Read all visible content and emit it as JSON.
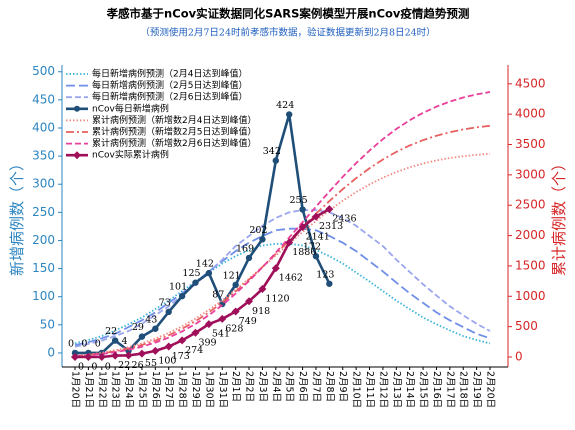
{
  "chart_data": {
    "type": "line",
    "title": "孝感市基于nCov实证数据同化SARS案例模型开展nCov疫情趋势预测",
    "subtitle": "（预测使用2月7日24时前孝感市数据，验证数据更新到2月8日24时）",
    "y_label": "新增病例数（个）",
    "y2_label": "累计病例数（个）",
    "categories": [
      "1月20日",
      "1月21日",
      "1月22日",
      "1月23日",
      "1月24日",
      "1月25日",
      "1月26日",
      "1月27日",
      "1月28日",
      "1月29日",
      "1月30日",
      "1月31日",
      "2月1日",
      "2月2日",
      "2月3日",
      "2月4日",
      "2月5日",
      "2月6日",
      "2月7日",
      "2月8日",
      "2月9日",
      "2月10日",
      "2月11日",
      "2月12日",
      "2月13日",
      "2月14日",
      "2月15日",
      "2月16日",
      "2月17日",
      "2月18日",
      "2月19日",
      "2月20日"
    ],
    "ylim": [
      -25,
      512
    ],
    "yticks": [
      0,
      50,
      100,
      150,
      200,
      250,
      300,
      350,
      400,
      450,
      500
    ],
    "y2lim": [
      -165,
      4810
    ],
    "y2ticks": [
      0,
      500,
      1000,
      1500,
      2000,
      2500,
      3000,
      3500,
      4000,
      4500
    ],
    "y_color": "#2e86c1",
    "y2_color": "#d62728",
    "legend": "upper left",
    "series": [
      {
        "name": "每日新增病例预测（2月4日达到峰值）",
        "color": "#3cb4dc",
        "dash": "dotted",
        "values": [
          17,
          23,
          30,
          40,
          51,
          63,
          78,
          93,
          110,
          127,
          143,
          159,
          172,
          183,
          191,
          194,
          194,
          191,
          183,
          172,
          159,
          143,
          127,
          110,
          93,
          78,
          63,
          51,
          40,
          30,
          23,
          17
        ]
      },
      {
        "name": "每日新增病例预测（2月5日达到峰值）",
        "color": "#6f8fe8",
        "dash": "long",
        "values": [
          14,
          19,
          26,
          34,
          46,
          58,
          72,
          89,
          106,
          125,
          145,
          163,
          181,
          196,
          208,
          218,
          221,
          221,
          218,
          208,
          196,
          181,
          163,
          145,
          125,
          106,
          89,
          72,
          58,
          46,
          34,
          26
        ]
      },
      {
        "name": "每日新增病例预测（2月6日达到峰值）",
        "color": "#9aa6ee",
        "dash": "dashed",
        "values": [
          11,
          16,
          22,
          30,
          39,
          52,
          67,
          83,
          102,
          122,
          144,
          166,
          190,
          208,
          226,
          240,
          250,
          254,
          254,
          250,
          240,
          226,
          208,
          190,
          166,
          144,
          122,
          102,
          83,
          67,
          52,
          39
        ]
      },
      {
        "name": "nCov每日新增病例",
        "color": "#1f4e79",
        "dash": "solid",
        "marker": "circle",
        "values": [
          0,
          0,
          0,
          22,
          4,
          29,
          43,
          73,
          101,
          125,
          142,
          87,
          121,
          169,
          202,
          342,
          424,
          255,
          172,
          123,
          null,
          null,
          null,
          null,
          null,
          null,
          null,
          null,
          null,
          null,
          null,
          null
        ]
      },
      {
        "name": "累计病例预测（新增数2月4日达到峰值）",
        "color": "#f08a80",
        "dash": "dotted",
        "axis": "y2",
        "values": [
          17,
          40,
          70,
          110,
          161,
          224,
          302,
          395,
          505,
          632,
          775,
          934,
          1106,
          1289,
          1480,
          1674,
          1868,
          2059,
          2242,
          2414,
          2573,
          2716,
          2843,
          2953,
          3046,
          3124,
          3187,
          3238,
          3278,
          3308,
          3331,
          3348
        ]
      },
      {
        "name": "累计病例预测（新增数2月5日达到峰值）",
        "color": "#e86060",
        "dash": "dashdot",
        "axis": "y2",
        "values": [
          14,
          33,
          59,
          93,
          139,
          197,
          269,
          358,
          464,
          589,
          734,
          897,
          1078,
          1274,
          1482,
          1700,
          1921,
          2142,
          2360,
          2568,
          2764,
          2945,
          3108,
          3253,
          3378,
          3484,
          3573,
          3645,
          3703,
          3749,
          3783,
          3809
        ]
      },
      {
        "name": "累计病例预测（新增数2月6日达到峰值）",
        "color": "#e8409a",
        "dash": "dashed",
        "axis": "y2",
        "values": [
          11,
          27,
          49,
          79,
          118,
          170,
          237,
          320,
          422,
          544,
          688,
          854,
          1044,
          1252,
          1478,
          1718,
          1968,
          2222,
          2476,
          2726,
          2966,
          3192,
          3400,
          3590,
          3756,
          3900,
          4022,
          4124,
          4207,
          4274,
          4326,
          4365
        ]
      },
      {
        "name": "nCov实际累计病例",
        "color": "#a0105a",
        "dash": "solid",
        "marker": "diamond",
        "axis": "y2",
        "values": [
          0,
          0,
          0,
          22,
          26,
          55,
          100,
          173,
          274,
          399,
          541,
          628,
          749,
          918,
          1120,
          1462,
          1886,
          2141,
          2313,
          2436,
          null,
          null,
          null,
          null,
          null,
          null,
          null,
          null,
          null,
          null,
          null,
          null
        ]
      }
    ]
  }
}
